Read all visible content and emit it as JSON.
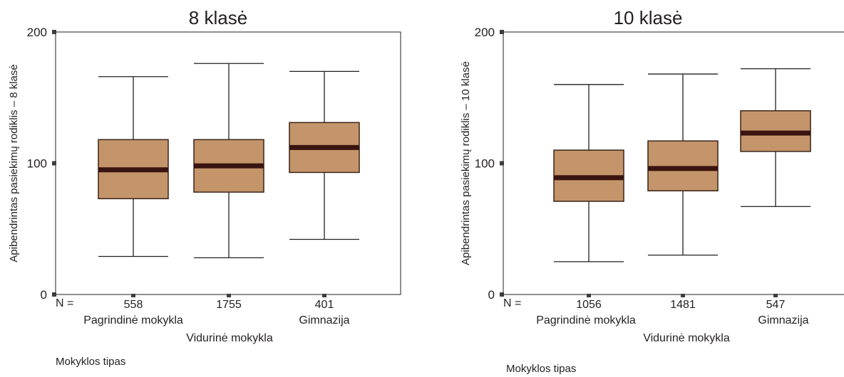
{
  "chart_data": [
    {
      "type": "box",
      "title": "8 klasė",
      "ylabel": "Apibendrintas pasiekimų rodiklis – 8 klasė",
      "xlabel": "Mokyklos tipas",
      "n_prefix": "N =",
      "ylim": [
        0,
        200
      ],
      "yticks": [
        "0",
        "100",
        "200"
      ],
      "categories": [
        "Pagrindinė mokykla",
        "Vidurinė mokykla",
        "Gimnazija"
      ],
      "n": [
        "558",
        "1755",
        "401"
      ],
      "boxes": [
        {
          "min": 29,
          "q1": 73,
          "median": 95,
          "q3": 118,
          "max": 166
        },
        {
          "min": 28,
          "q1": 78,
          "median": 98,
          "q3": 118,
          "max": 176
        },
        {
          "min": 42,
          "q1": 93,
          "median": 112,
          "q3": 131,
          "max": 170
        }
      ],
      "box_color": "#c4956a",
      "median_color": "#3a1410",
      "grid": false
    },
    {
      "type": "box",
      "title": "10 klasė",
      "ylabel": "Apibendrintas pasiekimų rodiklis – 10 klasė",
      "xlabel": "Mokyklos tipas",
      "n_prefix": "N =",
      "ylim": [
        0,
        200
      ],
      "yticks": [
        "0",
        "100",
        "200"
      ],
      "categories": [
        "Pagrindinė mokykla",
        "Vidurinė mokykla",
        "Gimnazija"
      ],
      "n": [
        "1056",
        "1481",
        "547"
      ],
      "boxes": [
        {
          "min": 25,
          "q1": 71,
          "median": 89,
          "q3": 110,
          "max": 160
        },
        {
          "min": 30,
          "q1": 79,
          "median": 96,
          "q3": 117,
          "max": 168
        },
        {
          "min": 67,
          "q1": 109,
          "median": 123,
          "q3": 140,
          "max": 172
        }
      ],
      "box_color": "#c4956a",
      "median_color": "#3a1410",
      "grid": false
    }
  ]
}
